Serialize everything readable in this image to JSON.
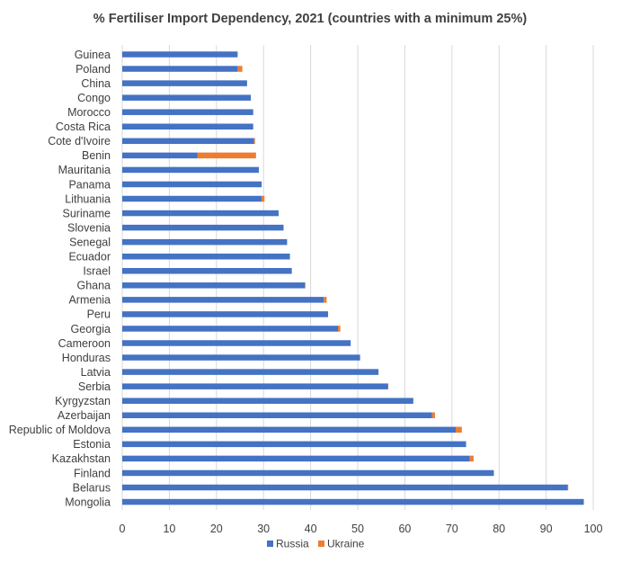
{
  "chart_data": {
    "type": "bar",
    "orientation": "horizontal",
    "stacked": true,
    "title": "% Fertiliser Import Dependency, 2021 (countries with a minimum 25%)",
    "xlim": [
      0,
      100
    ],
    "x_ticks": [
      0,
      10,
      20,
      30,
      40,
      50,
      60,
      70,
      80,
      90,
      100
    ],
    "grid": "vertical",
    "legend_position": "bottom",
    "categories": [
      "Guinea",
      "Poland",
      "China",
      "Congo",
      "Morocco",
      "Costa Rica",
      "Cote d'Ivoire",
      "Benin",
      "Mauritania",
      "Panama",
      "Lithuania",
      "Suriname",
      "Slovenia",
      "Senegal",
      "Ecuador",
      "Israel",
      "Ghana",
      "Armenia",
      "Peru",
      "Georgia",
      "Cameroon",
      "Honduras",
      "Latvia",
      "Serbia",
      "Kyrgyzstan",
      "Azerbaijan",
      "Republic of Moldova",
      "Estonia",
      "Kazakhstan",
      "Finland",
      "Belarus",
      "Mongolia"
    ],
    "series": [
      {
        "name": "Russia",
        "color": "#4472C4",
        "values": [
          24.5,
          24.5,
          26.5,
          27.3,
          27.8,
          27.8,
          28.0,
          16.0,
          29.0,
          29.6,
          29.6,
          33.2,
          34.2,
          35.0,
          35.6,
          36.0,
          38.8,
          42.8,
          43.7,
          45.8,
          48.5,
          50.5,
          54.4,
          56.4,
          61.8,
          65.8,
          70.8,
          73.0,
          73.8,
          78.9,
          94.6,
          98.0
        ]
      },
      {
        "name": "Ukraine",
        "color": "#ED7D31",
        "values": [
          0,
          1.0,
          0,
          0,
          0,
          0,
          0.2,
          12.4,
          0,
          0,
          0.6,
          0,
          0.1,
          0,
          0,
          0,
          0.1,
          0.6,
          0,
          0.5,
          0,
          0,
          0,
          0.1,
          0,
          0.6,
          1.3,
          0,
          0.8,
          0,
          0.1,
          0
        ]
      }
    ]
  }
}
